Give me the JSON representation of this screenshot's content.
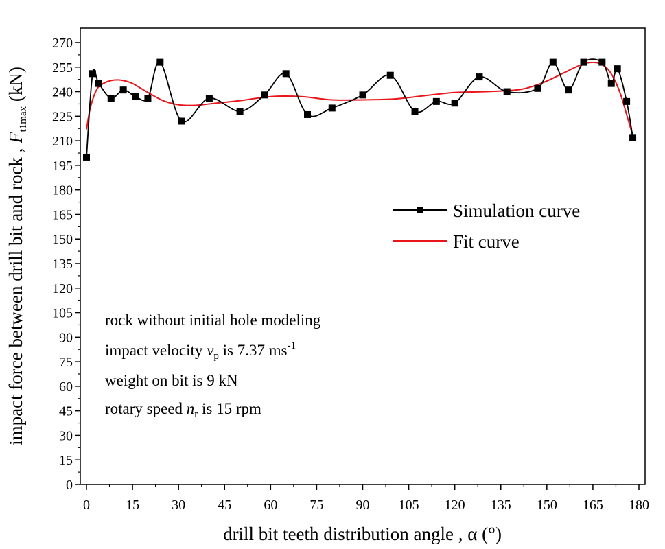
{
  "chart_data": {
    "type": "line",
    "xlabel": "drill bit teeth distribution angle , α (°)",
    "ylabel_main": "impact force between drill bit and rock , ",
    "ylabel_symbol": "F",
    "ylabel_subscript": "t1max",
    "ylabel_unit": " (kN)",
    "xlim": [
      0,
      180
    ],
    "ylim": [
      0,
      280
    ],
    "x_ticks": [
      0,
      15,
      30,
      45,
      60,
      75,
      90,
      105,
      120,
      135,
      150,
      165,
      180
    ],
    "y_ticks": [
      0,
      15,
      30,
      45,
      60,
      75,
      90,
      105,
      120,
      135,
      150,
      165,
      180,
      195,
      210,
      225,
      240,
      255,
      270
    ],
    "grid": false,
    "legend": {
      "position": "center-right",
      "entries": [
        "Simulation curve",
        "Fit curve"
      ]
    },
    "series": [
      {
        "name": "Simulation curve",
        "color": "#000000",
        "marker": "square",
        "x": [
          0,
          2,
          4,
          8,
          12,
          16,
          20,
          24,
          31,
          40,
          50,
          58,
          65,
          72,
          80,
          90,
          99,
          107,
          114,
          120,
          128,
          137,
          147,
          152,
          157,
          162,
          168,
          171,
          173,
          176,
          178
        ],
        "y": [
          200,
          251,
          245,
          236,
          241,
          237,
          236,
          258,
          222,
          236,
          228,
          238,
          251,
          226,
          230,
          238,
          250,
          228,
          234,
          233,
          249,
          240,
          242,
          258,
          241,
          258,
          258,
          245,
          254,
          234,
          212
        ]
      },
      {
        "name": "Fit curve",
        "color": "#e8161b",
        "x": [
          0,
          1,
          2,
          3,
          4,
          6,
          8,
          10,
          12,
          15,
          20,
          25,
          30,
          35,
          40,
          50,
          60,
          70,
          80,
          90,
          100,
          110,
          120,
          130,
          140,
          145,
          150,
          155,
          160,
          163,
          166,
          168,
          170,
          172,
          174,
          176,
          178
        ],
        "y": [
          217,
          228,
          235,
          240,
          243,
          245.5,
          246.8,
          247.2,
          246.8,
          245,
          239.5,
          234.5,
          232,
          231.6,
          232.5,
          234.5,
          237,
          237,
          235,
          235,
          235.5,
          237.5,
          239.5,
          240,
          241,
          243,
          246.5,
          251,
          255.5,
          257.5,
          257.8,
          256.5,
          253.5,
          247.5,
          238.5,
          226,
          213
        ]
      }
    ],
    "annotations": [
      {
        "text": "rock without initial hole modeling"
      },
      {
        "pre": "impact velocity ",
        "symbol": "v",
        "sub": "p",
        "post": " is 7.37 ms",
        "sup": "-1"
      },
      {
        "text": "weight on bit is 9 kN"
      },
      {
        "pre": "rotary speed ",
        "symbol": "n",
        "sub": "r",
        "post": " is 15 rpm"
      }
    ]
  }
}
